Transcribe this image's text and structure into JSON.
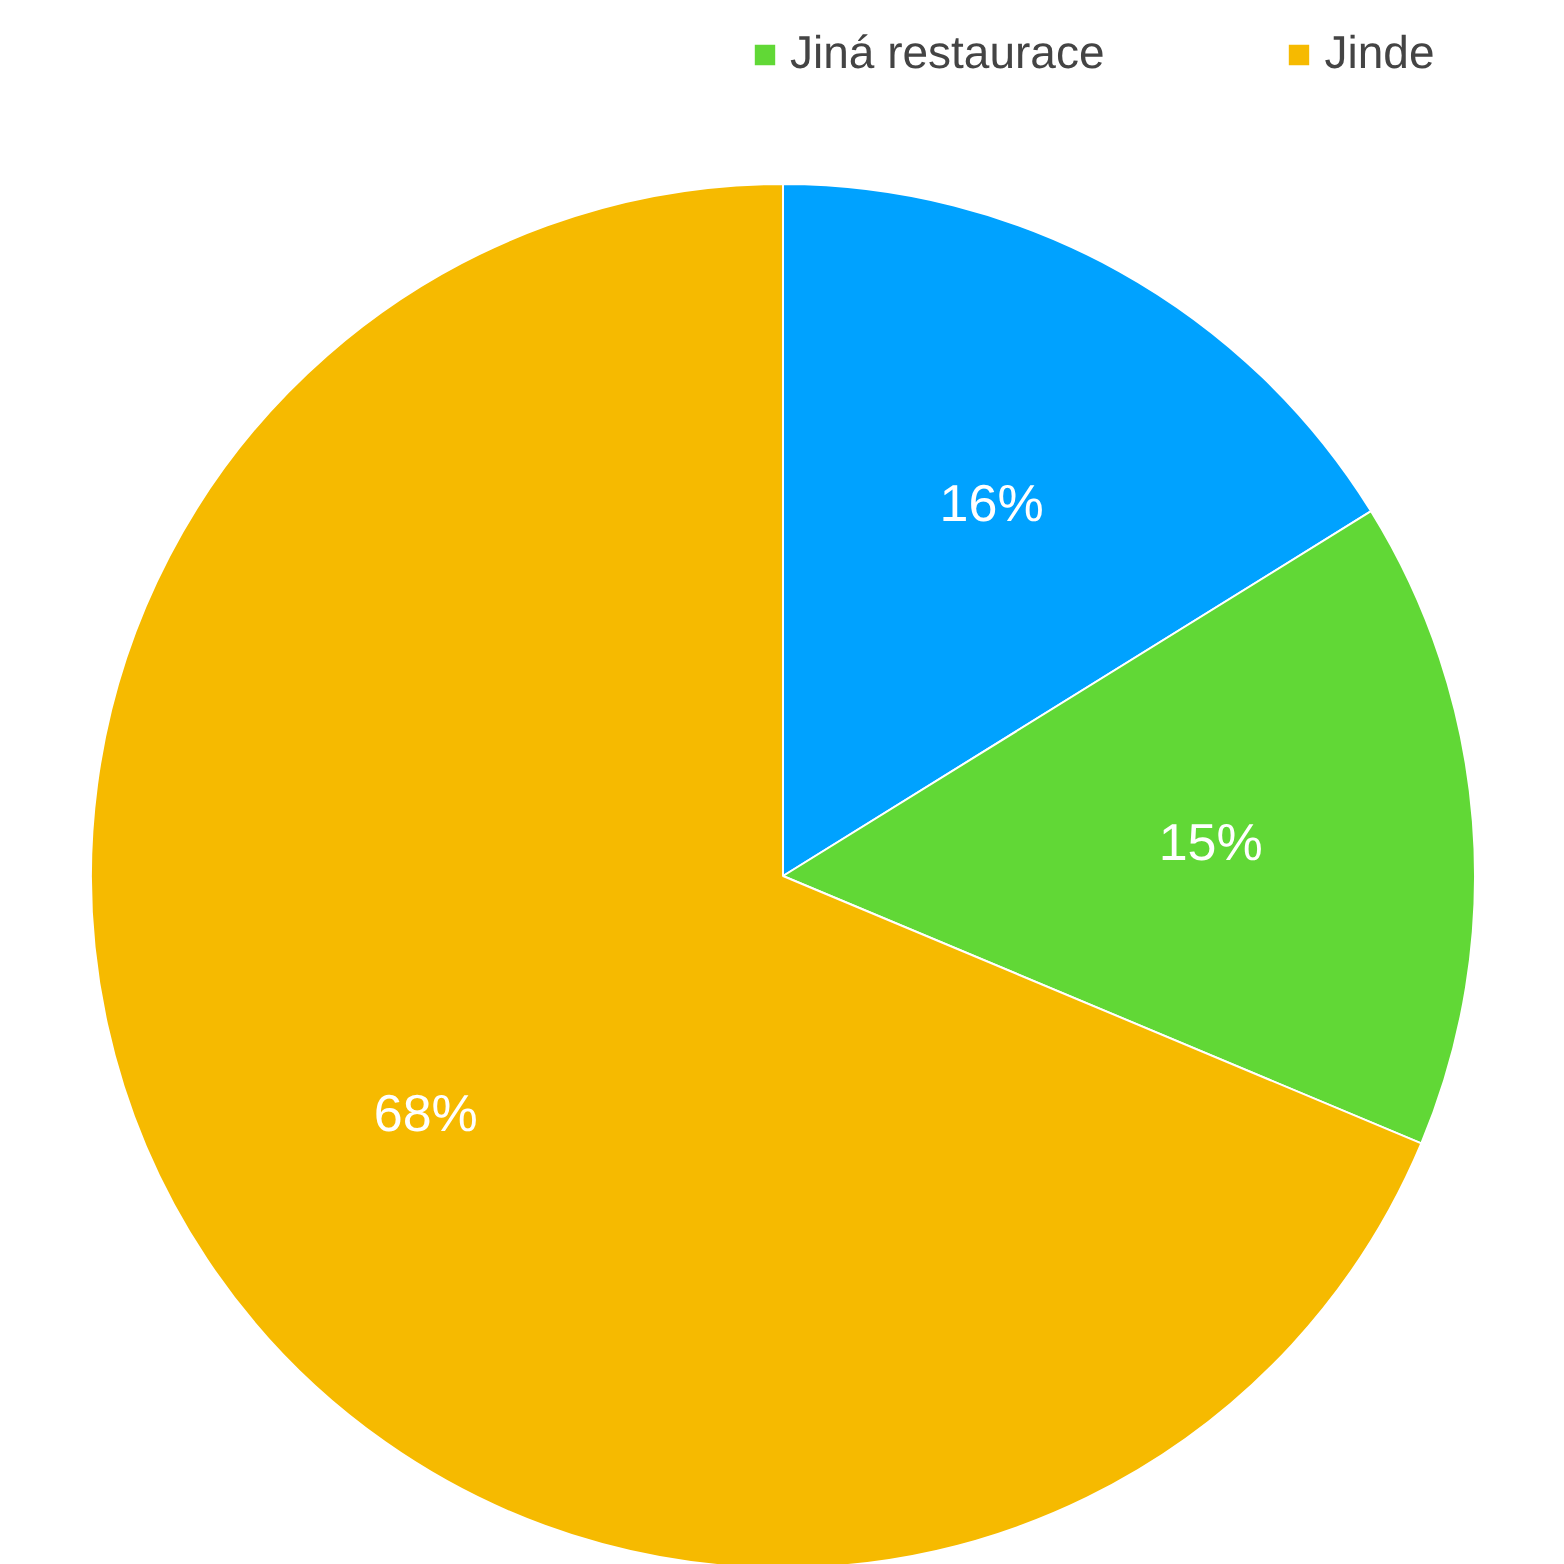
{
  "chart_data": {
    "type": "pie",
    "categories": [
      null,
      "Jiná restaurace",
      "Jinde"
    ],
    "values": [
      16,
      15,
      68
    ],
    "colors": [
      "#00a2ff",
      "#61d836",
      "#f6ba00"
    ],
    "value_labels": [
      "16%",
      "15%",
      "68%"
    ],
    "legend": "top"
  }
}
